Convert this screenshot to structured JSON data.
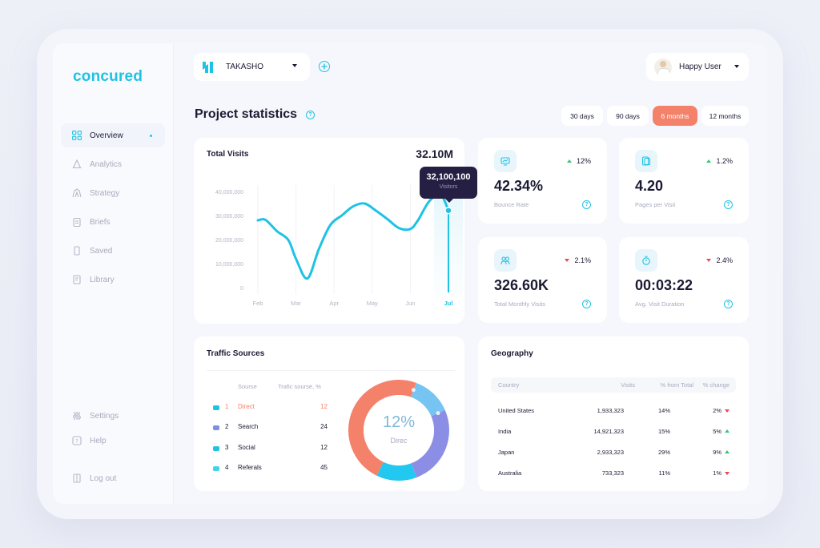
{
  "brand": "concured",
  "sidebar": {
    "items": [
      {
        "label": "Overview",
        "icon": "grid-icon"
      },
      {
        "label": "Analytics",
        "icon": "analytics-icon"
      },
      {
        "label": "Strategy",
        "icon": "strategy-icon"
      },
      {
        "label": "Briefs",
        "icon": "clipboard-icon"
      },
      {
        "label": "Saved",
        "icon": "bookmark-icon"
      },
      {
        "label": "Library",
        "icon": "library-icon"
      }
    ],
    "bottom": [
      {
        "label": "Settings",
        "icon": "sliders-icon"
      },
      {
        "label": "Help",
        "icon": "help-icon"
      },
      {
        "label": "Log out",
        "icon": "logout-icon"
      }
    ]
  },
  "header": {
    "project": "TAKASHO",
    "user": "Happy User"
  },
  "page": {
    "title": "Project statistics",
    "ranges": [
      "30 days",
      "90 days",
      "6 months",
      "12 months"
    ],
    "active_range": "6 months"
  },
  "visits": {
    "title": "Total Visits",
    "total": "32.10M",
    "tooltip_value": "32,100,100",
    "tooltip_label": "Visitors"
  },
  "kpis": [
    {
      "icon": "chart-icon",
      "change": "12%",
      "direction": "up",
      "value": "42.34%",
      "label": "Bounce Rate"
    },
    {
      "icon": "pages-icon",
      "change": "1.2%",
      "direction": "up",
      "value": "4.20",
      "label": "Pages per Visit"
    },
    {
      "icon": "users-icon",
      "change": "2.1%",
      "direction": "down",
      "value": "326.60K",
      "label": "Total Monthly Visits"
    },
    {
      "icon": "stopwatch-icon",
      "change": "2.4%",
      "direction": "down",
      "value": "00:03:22",
      "label": "Avg. Visit Duration"
    }
  ],
  "traffic": {
    "title": "Traffic Sources",
    "col_source": "Sourse",
    "col_percent": "Trafic sourse, %",
    "rows": [
      {
        "num": "1",
        "name": "Direct",
        "value": "12",
        "color": "#1ec3e4"
      },
      {
        "num": "2",
        "name": "Search",
        "value": "24",
        "color": "#7f8fe0"
      },
      {
        "num": "3",
        "name": "Social",
        "value": "12",
        "color": "#1ec3e4"
      },
      {
        "num": "4",
        "name": "Referals",
        "value": "45",
        "color": "#3fd3ee"
      }
    ],
    "donut_value": "12%",
    "donut_label": "Direc",
    "accent": "#f4816a"
  },
  "geography": {
    "title": "Geography",
    "columns": [
      "Country",
      "Visits",
      "% from Total",
      "% change"
    ],
    "rows": [
      {
        "country": "United States",
        "visits": "1,933,323",
        "share": "14%",
        "change": "2%",
        "direction": "down"
      },
      {
        "country": "India",
        "visits": "14,921,323",
        "share": "15%",
        "change": "5%",
        "direction": "up"
      },
      {
        "country": "Japan",
        "visits": "2,933,323",
        "share": "29%",
        "change": "9%",
        "direction": "up"
      },
      {
        "country": "Australia",
        "visits": "733,323",
        "share": "11%",
        "change": "1%",
        "direction": "down"
      }
    ]
  },
  "chart_data": [
    {
      "type": "line",
      "title": "Total Visits",
      "x": [
        "Feb",
        "Mar",
        "Apr",
        "May",
        "Jun",
        "Jul"
      ],
      "y_ticks": [
        "40,000,000",
        "30,000,000",
        "20,000,000",
        "10,000,000",
        "0"
      ],
      "ylim": [
        0,
        40000000
      ],
      "series": [
        {
          "points": [
            [
              0.0,
              28000000
            ],
            [
              0.2,
              28200000
            ],
            [
              0.5,
              23500000
            ],
            [
              0.8,
              19800000
            ],
            [
              1.0,
              12000000
            ],
            [
              1.3,
              3800000
            ],
            [
              1.6,
              16000000
            ],
            [
              1.9,
              26000000
            ],
            [
              2.2,
              30000000
            ],
            [
              2.5,
              33800000
            ],
            [
              2.8,
              35000000
            ],
            [
              3.1,
              32000000
            ],
            [
              3.4,
              28500000
            ],
            [
              3.7,
              24800000
            ],
            [
              4.0,
              24400000
            ],
            [
              4.2,
              28000000
            ],
            [
              4.5,
              36000000
            ],
            [
              4.8,
              38400000
            ],
            [
              5.0,
              32100100
            ]
          ],
          "color": "#1ec3e4"
        }
      ],
      "highlight_x": "Jul"
    },
    {
      "type": "pie",
      "title": "Traffic Sources",
      "categories": [
        "Direct",
        "Search",
        "Social",
        "Referals"
      ],
      "values": [
        12,
        24,
        12,
        45
      ]
    }
  ]
}
